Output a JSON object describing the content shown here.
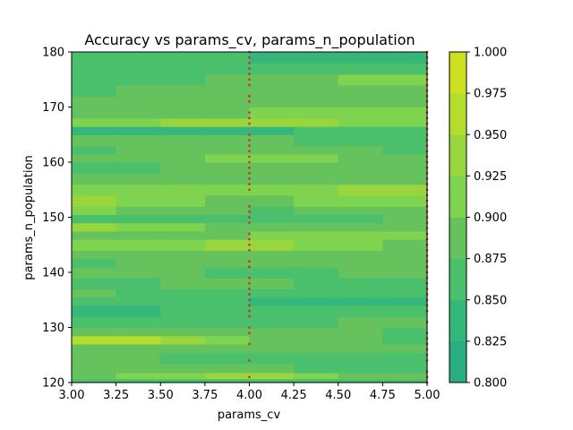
{
  "chart_data": {
    "type": "heatmap",
    "subtype": "filled-contour",
    "title": "Accuracy vs params_cv, params_n_population",
    "xlabel": "params_cv",
    "ylabel": "params_n_population",
    "xlim": [
      3.0,
      5.0
    ],
    "ylim": [
      120,
      180
    ],
    "x_ticks": [
      "3.00",
      "3.25",
      "3.50",
      "3.75",
      "4.00",
      "4.25",
      "4.50",
      "4.75",
      "5.00"
    ],
    "x_tick_values": [
      3.0,
      3.25,
      3.5,
      3.75,
      4.0,
      4.25,
      4.5,
      4.75,
      5.0
    ],
    "y_ticks": [
      "120",
      "130",
      "140",
      "150",
      "160",
      "170",
      "180"
    ],
    "y_tick_values": [
      120,
      130,
      140,
      150,
      160,
      170,
      180
    ],
    "colorbar": {
      "ticks": [
        "0.800",
        "0.825",
        "0.850",
        "0.875",
        "0.900",
        "0.925",
        "0.950",
        "0.975",
        "1.000"
      ],
      "levels": [
        0.8,
        0.825,
        0.85,
        0.875,
        0.9,
        0.925,
        0.95,
        0.975,
        1.0
      ],
      "colors": [
        "#2aae80",
        "#35b779",
        "#4ac06d",
        "#65c25c",
        "#7ed34f",
        "#99d63e",
        "#b5dd2b",
        "#cee121",
        "#efe51c"
      ]
    },
    "sample_points": {
      "color": "#d62728",
      "columns": [
        {
          "x": 4.0,
          "y": [
            121,
            124,
            127,
            129,
            130,
            132,
            133,
            134,
            135,
            136,
            137,
            138,
            139,
            141,
            142,
            144,
            145,
            146,
            147,
            149,
            150,
            151,
            152,
            155,
            156,
            157,
            158,
            159,
            160,
            161,
            162,
            163,
            164,
            165,
            167,
            168,
            169,
            171,
            172,
            174,
            175,
            176,
            177,
            178,
            179,
            180
          ]
        },
        {
          "x": 5.0,
          "y": [
            120,
            121,
            122,
            124,
            125,
            126,
            127,
            128,
            129,
            131,
            133,
            134,
            135,
            136,
            137,
            138,
            139,
            140,
            141,
            142,
            143,
            144,
            145,
            146,
            147,
            148,
            149,
            150,
            151,
            152,
            153,
            154,
            155,
            156,
            157,
            158,
            159,
            160,
            161,
            162,
            163,
            164,
            165,
            166,
            167,
            168,
            169,
            170,
            171,
            172,
            173,
            174,
            175,
            176,
            177,
            178,
            179,
            180
          ]
        }
      ]
    },
    "bands": [
      {
        "y0": 120.0,
        "y1": 120.7,
        "v3": 0.87,
        "v4": 0.86,
        "v5": 0.85
      },
      {
        "y0": 120.7,
        "y1": 121.8,
        "v3": 0.88,
        "v4": 0.94,
        "v5": 0.87
      },
      {
        "y0": 121.8,
        "y1": 123.5,
        "v3": 0.89,
        "v4": 0.88,
        "v5": 0.86
      },
      {
        "y0": 123.5,
        "y1": 125.5,
        "v3": 0.88,
        "v4": 0.87,
        "v5": 0.87
      },
      {
        "y0": 125.5,
        "y1": 127.0,
        "v3": 0.89,
        "v4": 0.9,
        "v5": 0.88
      },
      {
        "y0": 127.0,
        "y1": 128.5,
        "v3": 0.98,
        "v4": 0.9,
        "v5": 0.87
      },
      {
        "y0": 128.5,
        "y1": 130.0,
        "v3": 0.9,
        "v4": 0.89,
        "v5": 0.87
      },
      {
        "y0": 130.0,
        "y1": 132.0,
        "v3": 0.86,
        "v4": 0.87,
        "v5": 0.88
      },
      {
        "y0": 132.0,
        "y1": 134.0,
        "v3": 0.84,
        "v4": 0.86,
        "v5": 0.85
      },
      {
        "y0": 134.0,
        "y1": 135.5,
        "v3": 0.86,
        "v4": 0.85,
        "v5": 0.84
      },
      {
        "y0": 135.5,
        "y1": 137.0,
        "v3": 0.88,
        "v4": 0.86,
        "v5": 0.87
      },
      {
        "y0": 137.0,
        "y1": 139.0,
        "v3": 0.87,
        "v4": 0.88,
        "v5": 0.86
      },
      {
        "y0": 139.0,
        "y1": 141.0,
        "v3": 0.89,
        "v4": 0.87,
        "v5": 0.88
      },
      {
        "y0": 141.0,
        "y1": 142.5,
        "v3": 0.87,
        "v4": 0.9,
        "v5": 0.89
      },
      {
        "y0": 142.5,
        "y1": 144.0,
        "v3": 0.88,
        "v4": 0.89,
        "v5": 0.9
      },
      {
        "y0": 144.0,
        "y1": 146.0,
        "v3": 0.9,
        "v4": 0.93,
        "v5": 0.89
      },
      {
        "y0": 146.0,
        "y1": 147.5,
        "v3": 0.89,
        "v4": 0.9,
        "v5": 0.91
      },
      {
        "y0": 147.5,
        "y1": 149.0,
        "v3": 0.93,
        "v4": 0.89,
        "v5": 0.9
      },
      {
        "y0": 149.0,
        "y1": 150.5,
        "v3": 0.87,
        "v4": 0.86,
        "v5": 0.88
      },
      {
        "y0": 150.5,
        "y1": 152.0,
        "v3": 0.91,
        "v4": 0.87,
        "v5": 0.89
      },
      {
        "y0": 152.0,
        "y1": 154.0,
        "v3": 0.94,
        "v4": 0.89,
        "v5": 0.92
      },
      {
        "y0": 154.0,
        "y1": 156.0,
        "v3": 0.9,
        "v4": 0.92,
        "v5": 0.93
      },
      {
        "y0": 156.0,
        "y1": 158.0,
        "v3": 0.88,
        "v4": 0.9,
        "v5": 0.89
      },
      {
        "y0": 158.0,
        "y1": 160.0,
        "v3": 0.86,
        "v4": 0.89,
        "v5": 0.9
      },
      {
        "y0": 160.0,
        "y1": 161.5,
        "v3": 0.88,
        "v4": 0.91,
        "v5": 0.89
      },
      {
        "y0": 161.5,
        "y1": 163.0,
        "v3": 0.86,
        "v4": 0.9,
        "v5": 0.87
      },
      {
        "y0": 163.0,
        "y1": 165.0,
        "v3": 0.89,
        "v4": 0.88,
        "v5": 0.86
      },
      {
        "y0": 165.0,
        "y1": 166.5,
        "v3": 0.85,
        "v4": 0.84,
        "v5": 0.87
      },
      {
        "y0": 166.5,
        "y1": 168.0,
        "v3": 0.9,
        "v4": 0.95,
        "v5": 0.9
      },
      {
        "y0": 168.0,
        "y1": 170.0,
        "v3": 0.88,
        "v4": 0.9,
        "v5": 0.92
      },
      {
        "y0": 170.0,
        "y1": 172.0,
        "v3": 0.89,
        "v4": 0.88,
        "v5": 0.89
      },
      {
        "y0": 172.0,
        "y1": 174.0,
        "v3": 0.87,
        "v4": 0.9,
        "v5": 0.88
      },
      {
        "y0": 174.0,
        "y1": 176.0,
        "v3": 0.86,
        "v4": 0.88,
        "v5": 0.92
      },
      {
        "y0": 176.0,
        "y1": 178.0,
        "v3": 0.85,
        "v4": 0.87,
        "v5": 0.86
      },
      {
        "y0": 178.0,
        "y1": 180.0,
        "v3": 0.86,
        "v4": 0.85,
        "v5": 0.84
      }
    ]
  }
}
